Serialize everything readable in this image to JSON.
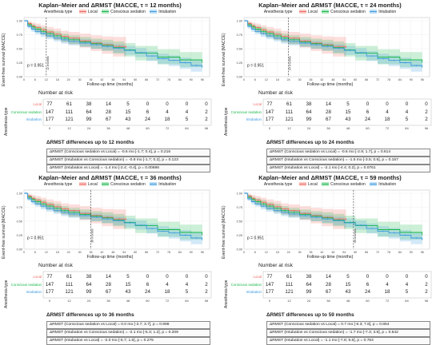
{
  "colors": {
    "local": "#f0685f",
    "conscious": "#19b84a",
    "intubation": "#3d9ae0"
  },
  "legend": {
    "title": "Anesthesia type",
    "items": [
      "Local",
      "Conscious sedation",
      "Intubation"
    ]
  },
  "ylabel": "Event-free survival (MACCE)",
  "xlabel": "Follow-up time (months)",
  "risk_header": "Number at risk",
  "risk_ylabel": "Anesthesia type",
  "risk_groups": [
    "Local",
    "Conscious sedation",
    "Intubation"
  ],
  "risk_x_ticks": [
    "0",
    "12",
    "24",
    "36",
    "48",
    "60",
    "72",
    "84",
    "96"
  ],
  "risk_table": [
    [
      "77",
      "61",
      "38",
      "14",
      "5",
      "0",
      "0",
      "0",
      "0"
    ],
    [
      "147",
      "111",
      "64",
      "28",
      "15",
      "6",
      "4",
      "4",
      "2"
    ],
    [
      "177",
      "121",
      "99",
      "67",
      "43",
      "24",
      "18",
      "5",
      "2"
    ]
  ],
  "pvalue": "p = 0.951",
  "panels": [
    {
      "title": "Kaplan–Meier and ΔRMST (MACCE, τ = 12 months)",
      "tau_label": "12 months",
      "diff_heading": "ΔRMST differences up to 12 months",
      "diffs": [
        "ΔRMST (Conscious sedation vs Local) = -0.6 mo [-1.7; 0.4], p = 0.216",
        "ΔRMST (Intubation vs Conscious sedation) = -0.8 mo [-1.7; 0.2], p = 0.123",
        "ΔRMST (Intubation vs Local) = -1.4 mo [-2.4; -0.4], p = 0.00686"
      ]
    },
    {
      "title": "Kaplan–Meier and ΔRMST (MACCE, τ = 24 months)",
      "tau_label": "24 months",
      "diff_heading": "ΔRMST differences up to 24 months",
      "diffs": [
        "ΔRMST (Conscious sedation vs Local) = -0.6 mo [-2.9; 1.7], p = 0.614",
        "ΔRMST (Intubation vs Conscious sedation) = -1.5 mo [-3.5; 0.6], p = 0.157",
        "ΔRMST (Intubation vs Local) = -2.1 mo [-4.4; 0.2], p = 0.0761"
      ]
    },
    {
      "title": "Kaplan–Meier and ΔRMST (MACCE, τ = 36 months)",
      "tau_label": "36 months",
      "diff_heading": "ΔRMST differences up to 36 months",
      "diffs": [
        "ΔRMST (Conscious sedation vs Local) = 0.0 mo [-3.7; 3.7], p = 0.998",
        "ΔRMST (Intubation vs Conscious sedation) = -2.1 mo [-5.3; 1.2], p = 0.209",
        "ΔRMST (Intubation vs Local) = -2.0 mo [-5.7; 1.6], p = 0.275"
      ]
    },
    {
      "title": "Kaplan–Meier and ΔRMST (MACCE, τ = 59 months)",
      "tau_label": "59 months",
      "diff_heading": "ΔRMST differences up to 59 months",
      "diffs": [
        "ΔRMST (Conscious sedation vs Local) = 0.7 mo [-6.3; 7.6], p = 0.854",
        "ΔRMST (Intubation vs Conscious sedation) = -1.7 mo [-7.3; 3.8], p = 0.542",
        "ΔRMST (Intubation vs Local) = -1.1 mo [-7.8; 5.6], p = 0.754"
      ]
    }
  ],
  "chart_data": {
    "type": "line",
    "step": true,
    "xlim": [
      0,
      100
    ],
    "ylim": [
      0,
      1
    ],
    "x_ticks": [
      0,
      6,
      12,
      18,
      24,
      30,
      36,
      42,
      48,
      54,
      60,
      66,
      72,
      78,
      84,
      90,
      96
    ],
    "y_ticks": [
      0.0,
      0.25,
      0.5,
      0.75,
      1.0
    ],
    "y_tick_labels": [
      "0.00",
      "0.25",
      "0.50",
      "0.75",
      "1.00"
    ],
    "grid": true,
    "legend_position": "top",
    "tau_values": [
      12,
      24,
      36,
      59
    ],
    "series": [
      {
        "name": "Local",
        "x": [
          0,
          2,
          4,
          6,
          9,
          12,
          16,
          20,
          24,
          30,
          36,
          42,
          48,
          55
        ],
        "y": [
          1.0,
          0.95,
          0.91,
          0.88,
          0.84,
          0.8,
          0.76,
          0.72,
          0.69,
          0.64,
          0.6,
          0.57,
          0.54,
          0.52
        ],
        "lower": [
          1.0,
          0.9,
          0.85,
          0.8,
          0.76,
          0.71,
          0.66,
          0.62,
          0.58,
          0.52,
          0.46,
          0.41,
          0.36,
          0.31
        ],
        "upper": [
          1.0,
          0.99,
          0.97,
          0.95,
          0.92,
          0.89,
          0.86,
          0.82,
          0.8,
          0.77,
          0.74,
          0.72,
          0.71,
          0.71
        ]
      },
      {
        "name": "Conscious sedation",
        "x": [
          0,
          2,
          4,
          6,
          9,
          12,
          16,
          20,
          24,
          30,
          36,
          42,
          48,
          54,
          60,
          72,
          84,
          96
        ],
        "y": [
          1.0,
          0.93,
          0.89,
          0.85,
          0.81,
          0.77,
          0.73,
          0.69,
          0.66,
          0.62,
          0.59,
          0.56,
          0.52,
          0.48,
          0.42,
          0.35,
          0.3,
          0.25
        ],
        "lower": [
          1.0,
          0.89,
          0.84,
          0.79,
          0.75,
          0.7,
          0.66,
          0.62,
          0.58,
          0.54,
          0.5,
          0.46,
          0.41,
          0.36,
          0.29,
          0.22,
          0.17,
          0.12
        ],
        "upper": [
          1.0,
          0.97,
          0.94,
          0.91,
          0.88,
          0.84,
          0.81,
          0.77,
          0.74,
          0.71,
          0.68,
          0.66,
          0.63,
          0.6,
          0.55,
          0.49,
          0.44,
          0.39
        ]
      },
      {
        "name": "Intubation",
        "x": [
          0,
          2,
          4,
          6,
          9,
          12,
          16,
          20,
          24,
          30,
          36,
          42,
          48,
          54,
          60,
          66,
          72,
          78,
          84,
          90,
          96
        ],
        "y": [
          1.0,
          0.9,
          0.85,
          0.81,
          0.77,
          0.73,
          0.69,
          0.66,
          0.63,
          0.6,
          0.57,
          0.54,
          0.51,
          0.47,
          0.43,
          0.37,
          0.32,
          0.29,
          0.25,
          0.2,
          0.16
        ],
        "lower": [
          1.0,
          0.86,
          0.8,
          0.76,
          0.71,
          0.67,
          0.63,
          0.59,
          0.56,
          0.53,
          0.5,
          0.47,
          0.43,
          0.39,
          0.35,
          0.28,
          0.23,
          0.19,
          0.14,
          0.09,
          0.06
        ],
        "upper": [
          1.0,
          0.94,
          0.89,
          0.86,
          0.82,
          0.79,
          0.75,
          0.72,
          0.7,
          0.67,
          0.64,
          0.61,
          0.58,
          0.55,
          0.51,
          0.46,
          0.41,
          0.38,
          0.34,
          0.3,
          0.26
        ]
      }
    ]
  }
}
